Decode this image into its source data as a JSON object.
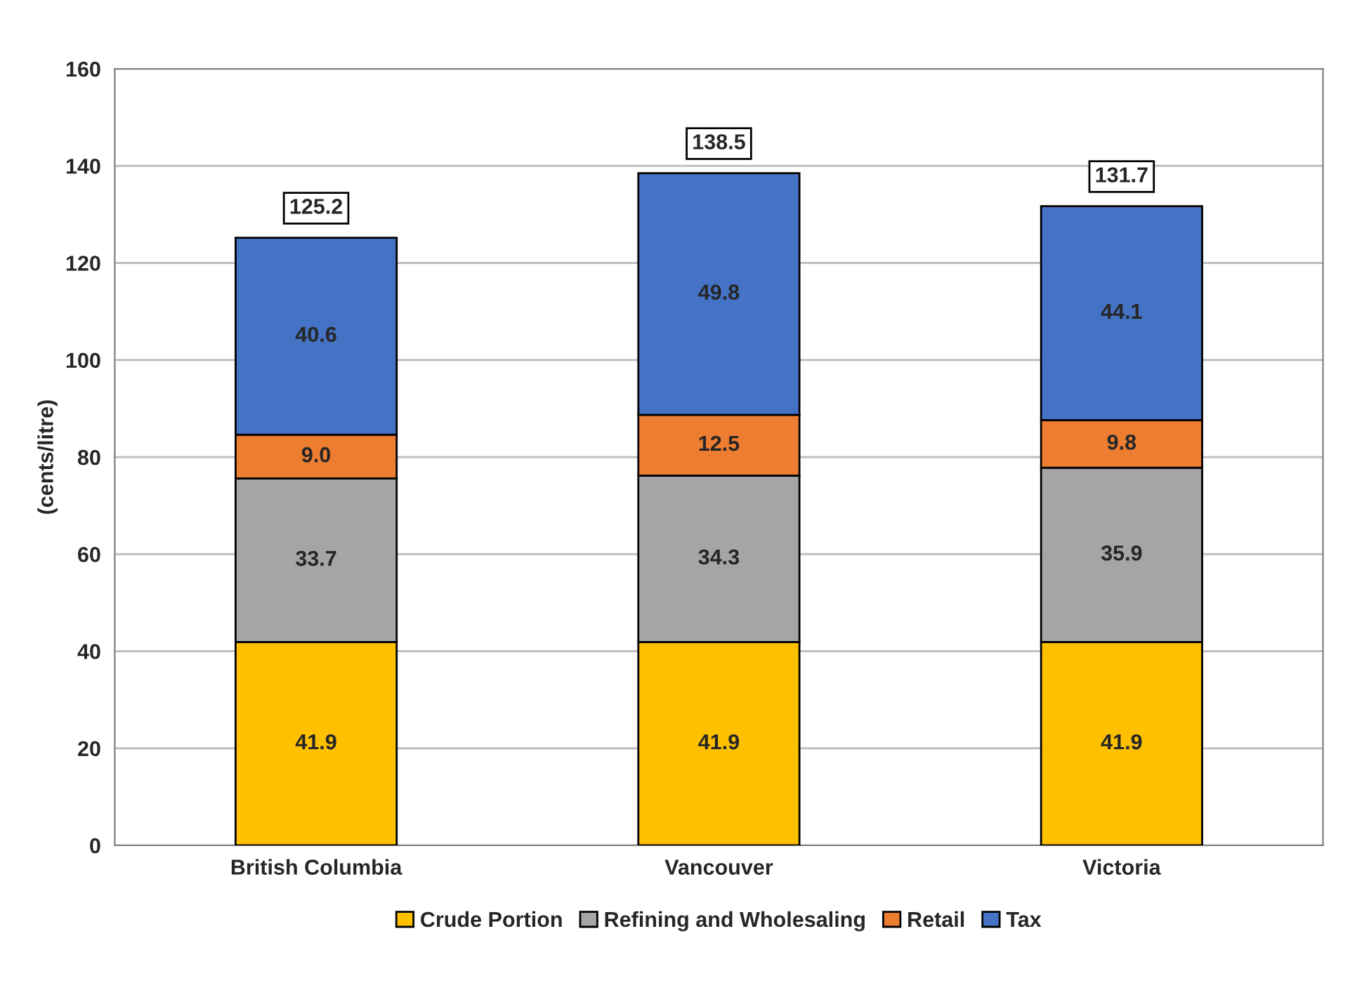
{
  "chart_data": {
    "type": "bar",
    "stacked": true,
    "ylabel": "(cents/litre)",
    "categories": [
      "British Columbia",
      "Vancouver",
      "Victoria"
    ],
    "series": [
      {
        "name": "Crude Portion",
        "color": "#ffc000",
        "values": [
          41.9,
          41.9,
          41.9
        ]
      },
      {
        "name": "Refining and Wholesaling",
        "color": "#a5a5a5",
        "values": [
          33.7,
          34.3,
          35.9
        ]
      },
      {
        "name": "Retail",
        "color": "#ed7d31",
        "values": [
          9.0,
          12.5,
          9.8
        ],
        "value_labels": [
          "9.0",
          "12.5",
          "9.8"
        ]
      },
      {
        "name": "Tax",
        "color": "#4472c4",
        "values": [
          40.6,
          49.8,
          44.1
        ]
      }
    ],
    "totals": [
      "125.2",
      "138.5",
      "131.7"
    ],
    "data_labels": true,
    "ylim": [
      0,
      160
    ],
    "yticks": [
      0,
      20,
      40,
      60,
      80,
      100,
      120,
      140,
      160
    ],
    "grid": "y",
    "legend": "bottom"
  }
}
